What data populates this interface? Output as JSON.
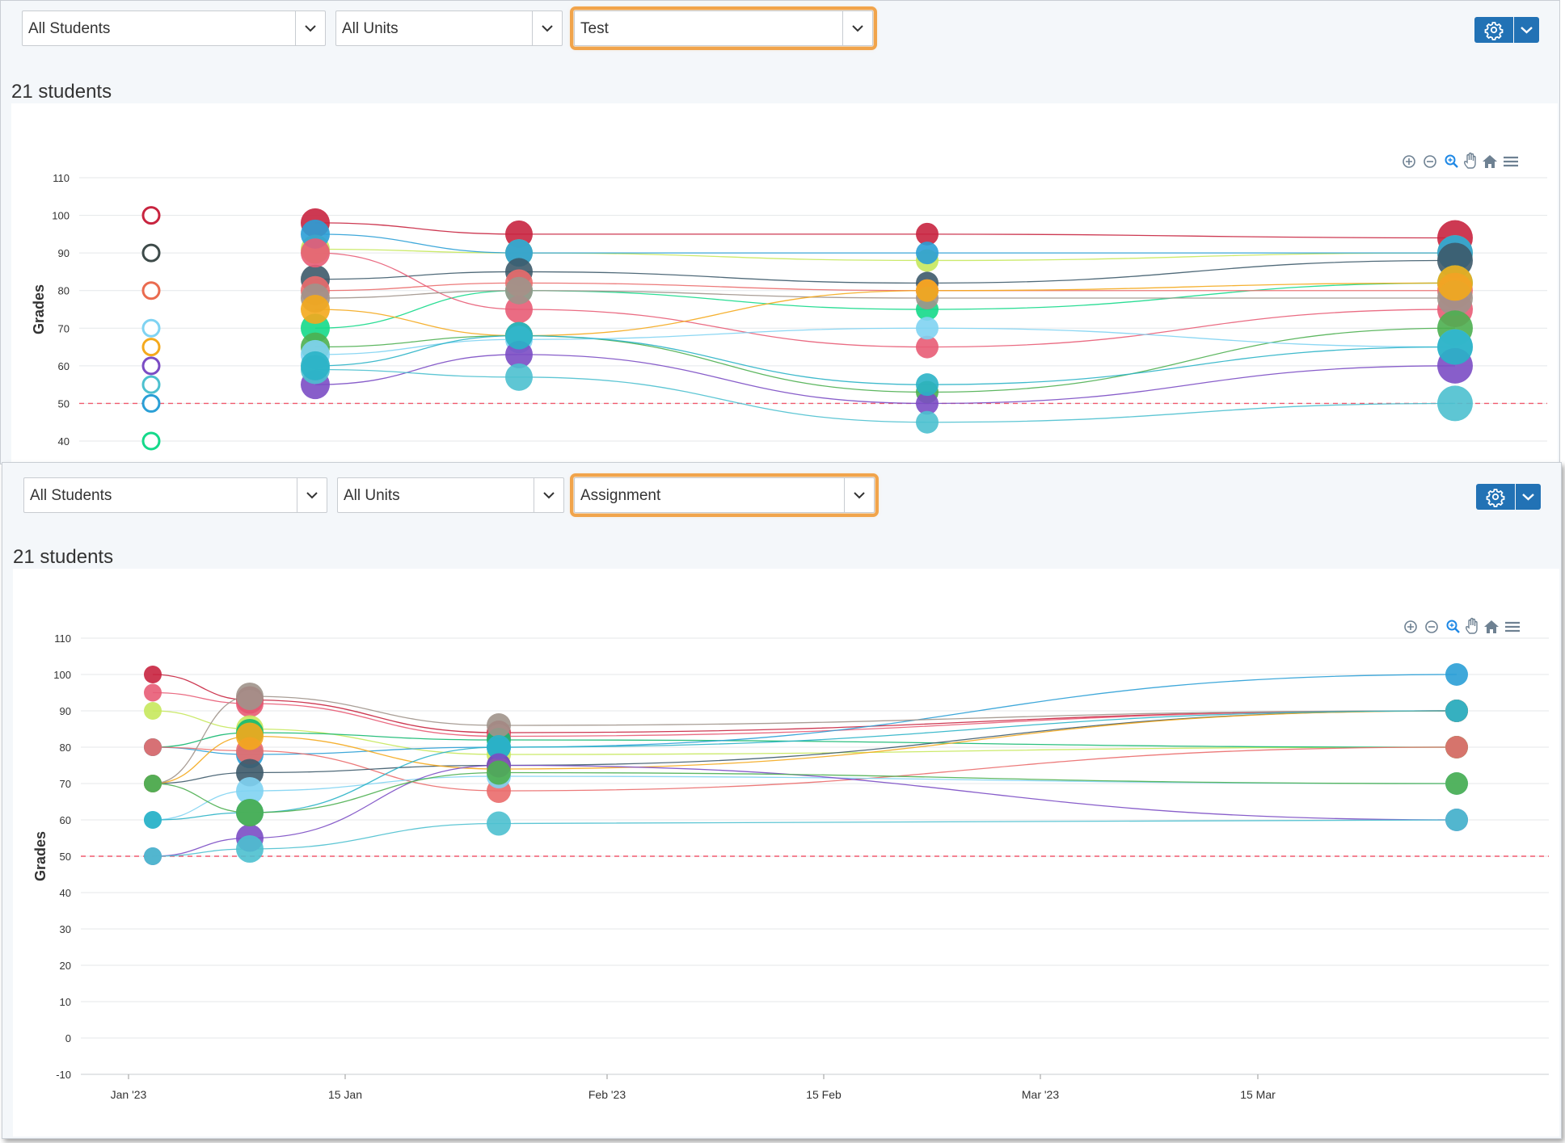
{
  "top": {
    "filters": {
      "students": "All Students",
      "units": "All Units",
      "type": "Test"
    },
    "count_title": "21 students"
  },
  "bottom": {
    "filters": {
      "students": "All Students",
      "units": "All Units",
      "type": "Assignment"
    },
    "count_title": "21 students"
  },
  "toolbar_icons": [
    "zoom-in-icon",
    "zoom-out-icon",
    "magnify-icon",
    "pan-hand-icon",
    "home-icon",
    "menu-icon"
  ],
  "chart_data": [
    {
      "type": "scatter",
      "title": "",
      "xlabel": "",
      "ylabel": "Grades",
      "ylim": [
        40,
        110
      ],
      "yticks": [
        40,
        50,
        60,
        70,
        80,
        90,
        100,
        110
      ],
      "threshold_line": 50,
      "x": [
        "2023-01-05",
        "2023-01-12",
        "2023-01-25",
        "2023-02-23",
        "2023-03-30"
      ],
      "hollow_points": [
        {
          "x": "2023-01-05",
          "y": 100,
          "color": "#c8243f"
        },
        {
          "x": "2023-01-05",
          "y": 90,
          "color": "#3d4a49"
        },
        {
          "x": "2023-01-05",
          "y": 80,
          "color": "#ea6b4f"
        },
        {
          "x": "2023-01-05",
          "y": 70,
          "color": "#7fd3f2"
        },
        {
          "x": "2023-01-05",
          "y": 65,
          "color": "#f4a91c"
        },
        {
          "x": "2023-01-05",
          "y": 60,
          "color": "#7b4cc4"
        },
        {
          "x": "2023-01-05",
          "y": 55,
          "color": "#4cc0cf"
        },
        {
          "x": "2023-01-05",
          "y": 50,
          "color": "#2a9fd6"
        },
        {
          "x": "2023-01-05",
          "y": 40,
          "color": "#14d98a"
        }
      ],
      "series": [
        {
          "color": "#c8243f",
          "values": [
            98,
            95,
            95,
            94
          ]
        },
        {
          "color": "#c6e85c",
          "values": [
            91,
            90,
            88,
            90
          ]
        },
        {
          "color": "#2a9fd6",
          "values": [
            95,
            90,
            90,
            90
          ]
        },
        {
          "color": "#3d5a6a",
          "values": [
            83,
            85,
            82,
            88
          ]
        },
        {
          "color": "#14d98a",
          "values": [
            70,
            80,
            75,
            82
          ]
        },
        {
          "color": "#ea6b6b",
          "values": [
            80,
            82,
            80,
            80
          ]
        },
        {
          "color": "#e85c75",
          "values": [
            90,
            75,
            65,
            75
          ]
        },
        {
          "color": "#a0938b",
          "values": [
            78,
            80,
            78,
            78
          ]
        },
        {
          "color": "#f4a91c",
          "values": [
            75,
            68,
            80,
            82
          ]
        },
        {
          "color": "#4caf50",
          "values": [
            65,
            68,
            53,
            70
          ]
        },
        {
          "color": "#7fd3f2",
          "values": [
            63,
            67,
            70,
            65
          ]
        },
        {
          "color": "#7b4cc4",
          "values": [
            55,
            63,
            50,
            60
          ]
        },
        {
          "color": "#4cc0cf",
          "values": [
            59,
            57,
            45,
            50
          ]
        },
        {
          "color": "#2ab3c6",
          "values": [
            60,
            68,
            55,
            65
          ]
        }
      ]
    },
    {
      "type": "scatter",
      "title": "",
      "xlabel": "",
      "ylabel": "Grades",
      "ylim": [
        -10,
        110
      ],
      "yticks": [
        -10,
        0,
        10,
        20,
        30,
        40,
        50,
        60,
        70,
        80,
        90,
        100,
        110
      ],
      "xticks": [
        "Jan '23",
        "15 Jan",
        "Feb '23",
        "15 Feb",
        "Mar '23",
        "15 Mar"
      ],
      "threshold_line": 50,
      "x": [
        "2023-01-01",
        "2023-01-05",
        "2023-01-27",
        "2023-03-26"
      ],
      "series": [
        {
          "color": "#c8243f",
          "values": [
            100,
            93,
            84,
            90
          ]
        },
        {
          "color": "#e85c75",
          "values": [
            95,
            92,
            83,
            90
          ]
        },
        {
          "color": "#c6e85c",
          "values": [
            90,
            85,
            78,
            80
          ]
        },
        {
          "color": "#14b870",
          "values": [
            80,
            84,
            82,
            80
          ]
        },
        {
          "color": "#2a9fd6",
          "values": [
            80,
            78,
            80,
            100
          ]
        },
        {
          "color": "#ea6b6b",
          "values": [
            80,
            79,
            68,
            80
          ]
        },
        {
          "color": "#3d5a6a",
          "values": [
            70,
            73,
            75,
            90
          ]
        },
        {
          "color": "#f4a91c",
          "values": [
            70,
            83,
            74,
            90
          ]
        },
        {
          "color": "#a0938b",
          "values": [
            70,
            94,
            86,
            90
          ]
        },
        {
          "color": "#7fd3f2",
          "values": [
            60,
            68,
            72,
            70
          ]
        },
        {
          "color": "#2ab3c6",
          "values": [
            60,
            62,
            80,
            90
          ]
        },
        {
          "color": "#7b4cc4",
          "values": [
            50,
            55,
            75,
            60
          ]
        },
        {
          "color": "#4cc0cf",
          "values": [
            50,
            52,
            59,
            60
          ]
        },
        {
          "color": "#4caf50",
          "values": [
            70,
            62,
            73,
            70
          ]
        }
      ]
    }
  ]
}
